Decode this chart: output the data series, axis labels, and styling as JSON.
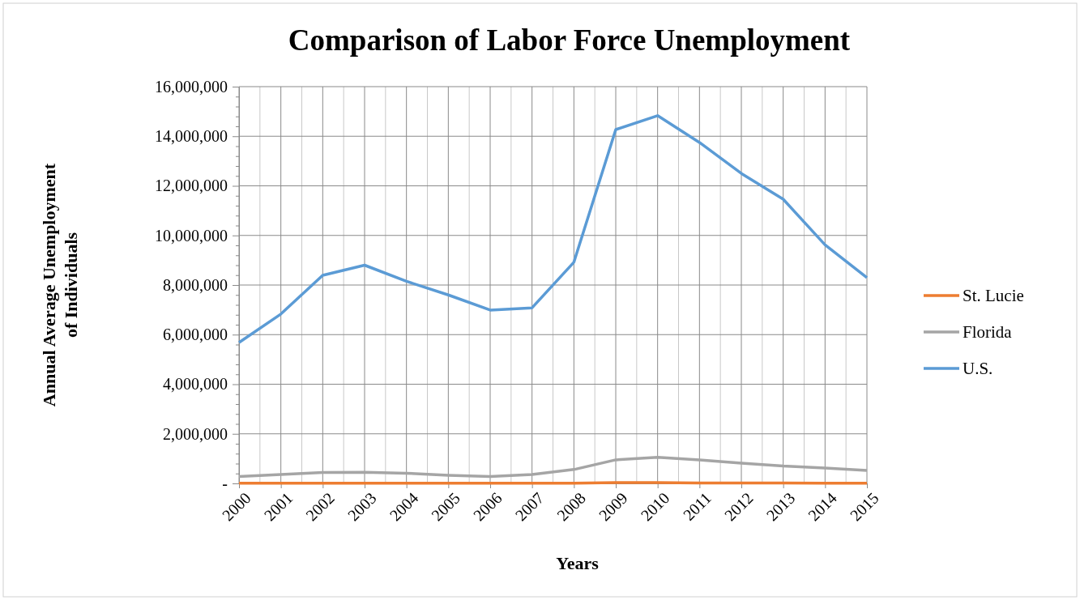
{
  "chart_data": {
    "type": "line",
    "title": "Comparison of Labor Force Unemployment",
    "xlabel": "Years",
    "ylabel": "Annual Average Unemployment of Individuals",
    "categories": [
      "2000",
      "2001",
      "2002",
      "2003",
      "2004",
      "2005",
      "2006",
      "2007",
      "2008",
      "2009",
      "2010",
      "2011",
      "2012",
      "2013",
      "2014",
      "2015"
    ],
    "series": [
      {
        "name": "St. Lucie",
        "color": "#ed7d31",
        "values": [
          10000,
          10000,
          10000,
          10000,
          10000,
          10000,
          10000,
          10000,
          10000,
          30000,
          30000,
          20000,
          20000,
          20000,
          10000,
          10000
        ]
      },
      {
        "name": "Florida",
        "color": "#a5a5a5",
        "values": [
          280000,
          360000,
          440000,
          450000,
          410000,
          330000,
          280000,
          360000,
          560000,
          950000,
          1050000,
          950000,
          820000,
          700000,
          620000,
          520000
        ]
      },
      {
        "name": "U.S.",
        "color": "#5b9bd5",
        "values": [
          5680000,
          6830000,
          8390000,
          8800000,
          8150000,
          7600000,
          6990000,
          7080000,
          8920000,
          14270000,
          14830000,
          13750000,
          12500000,
          11460000,
          9620000,
          8300000
        ]
      }
    ],
    "ylim": [
      0,
      16000000
    ],
    "yticks": [
      {
        "value": 0,
        "label": "-"
      },
      {
        "value": 400000,
        "label": null
      },
      {
        "value": 800000,
        "label": null
      },
      {
        "value": 1200000,
        "label": null
      },
      {
        "value": 1600000,
        "label": null
      },
      {
        "value": 2000000,
        "label": "2,000,000"
      },
      {
        "value": 2400000,
        "label": null
      },
      {
        "value": 2800000,
        "label": null
      },
      {
        "value": 3200000,
        "label": null
      },
      {
        "value": 3600000,
        "label": null
      },
      {
        "value": 4000000,
        "label": "4,000,000"
      },
      {
        "value": 4400000,
        "label": null
      },
      {
        "value": 4800000,
        "label": null
      },
      {
        "value": 5200000,
        "label": null
      },
      {
        "value": 5600000,
        "label": null
      },
      {
        "value": 6000000,
        "label": "6,000,000"
      },
      {
        "value": 6400000,
        "label": null
      },
      {
        "value": 6800000,
        "label": null
      },
      {
        "value": 7200000,
        "label": null
      },
      {
        "value": 7600000,
        "label": null
      },
      {
        "value": 8000000,
        "label": "8,000,000"
      },
      {
        "value": 8400000,
        "label": null
      },
      {
        "value": 8800000,
        "label": null
      },
      {
        "value": 9200000,
        "label": null
      },
      {
        "value": 9600000,
        "label": null
      },
      {
        "value": 10000000,
        "label": "10,000,000"
      },
      {
        "value": 10400000,
        "label": null
      },
      {
        "value": 10800000,
        "label": null
      },
      {
        "value": 11200000,
        "label": null
      },
      {
        "value": 11600000,
        "label": null
      },
      {
        "value": 12000000,
        "label": "12,000,000"
      },
      {
        "value": 12400000,
        "label": null
      },
      {
        "value": 12800000,
        "label": null
      },
      {
        "value": 13200000,
        "label": null
      },
      {
        "value": 13600000,
        "label": null
      },
      {
        "value": 14000000,
        "label": "14,000,000"
      },
      {
        "value": 14400000,
        "label": null
      },
      {
        "value": 14800000,
        "label": null
      },
      {
        "value": 15200000,
        "label": null
      },
      {
        "value": 15600000,
        "label": null
      },
      {
        "value": 16000000,
        "label": "16,000,000"
      }
    ],
    "grid": true,
    "legend": "right",
    "marker": "none",
    "line_style": "solid"
  }
}
